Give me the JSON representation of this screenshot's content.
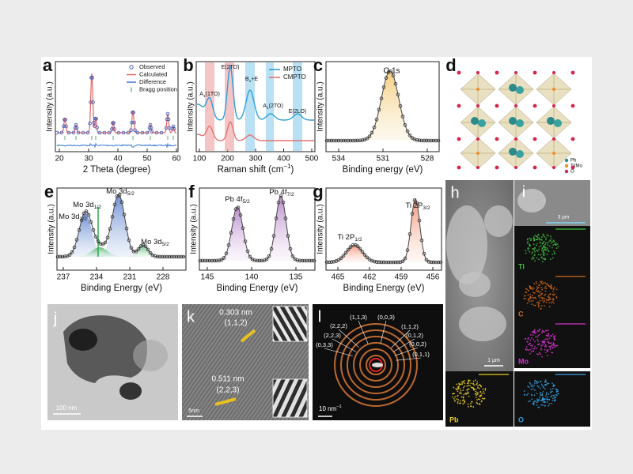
{
  "figure": {
    "a": {
      "label": "a",
      "y_label": "Intensity (a.u.)",
      "x_label": "2 Theta (degree)",
      "x_ticks": [
        "20",
        "30",
        "40",
        "50",
        "60"
      ],
      "legend": [
        "Observed",
        "Calculated",
        "Difference",
        "Bragg position"
      ]
    },
    "b": {
      "label": "b",
      "y_label": "Intensity (a.u.)",
      "x_label": {
        "text": "Raman shift (cm",
        "sup": "−1",
        "tail": ")"
      },
      "x_ticks": [
        "100",
        "200",
        "300",
        "400",
        "500"
      ],
      "legend": [
        "MPTO",
        "CMPTO"
      ],
      "peaks": [
        {
          "text": "A",
          "sub": "1",
          "tail": "(1TO)"
        },
        {
          "text": "E(2TO)"
        },
        {
          "text": "B",
          "sub": "1",
          "tail": "+E"
        },
        {
          "text": "A",
          "sub": "1",
          "tail": "(2TO)"
        },
        {
          "text": "E(2LO)"
        }
      ]
    },
    "c": {
      "label": "c",
      "y_label": "Intensity (a.u.)",
      "x_label": "Binding energy (eV)",
      "x_ticks": [
        "534",
        "531",
        "528"
      ],
      "peak": "O 1s"
    },
    "d": {
      "label": "d",
      "legend": [
        "Pb",
        "Ti/Mo",
        "O"
      ]
    },
    "e": {
      "label": "e",
      "y_label": "Intensity (a.u.)",
      "x_label": "Binding Energy (eV)",
      "x_ticks": [
        "237",
        "234",
        "231",
        "228"
      ],
      "peaks": [
        {
          "text": "Mo 3d",
          "sub": "3/2"
        },
        {
          "text": "Mo 3d",
          "sub": "1/2"
        },
        {
          "text": "Mo 3d",
          "sub": "5/2"
        },
        {
          "text": "Mo 3d",
          "sub": "5/2"
        }
      ]
    },
    "f": {
      "label": "f",
      "y_label": "Intensity (a.u.)",
      "x_label": "Binding Energy (eV)",
      "x_ticks": [
        "145",
        "140",
        "135"
      ],
      "peaks": [
        {
          "text": "Pb 4f",
          "sub": "5/2"
        },
        {
          "text": "Pb 4f",
          "sub": "7/2"
        }
      ]
    },
    "g": {
      "label": "g",
      "y_label": "Intensity (a.u.)",
      "x_label": "Binding Energy (eV)",
      "x_ticks": [
        "465",
        "462",
        "459",
        "456"
      ],
      "peaks": [
        {
          "text": "Ti 2P",
          "sub": "1/2"
        },
        {
          "text": "Ti 2P",
          "sub": "3/2"
        }
      ]
    },
    "h": {
      "label": "h",
      "scale": "1 μm"
    },
    "i": {
      "label": "i",
      "scale": "3 μm",
      "maps": [
        "Ti",
        "C",
        "Mo",
        "Pb",
        "O"
      ]
    },
    "j": {
      "label": "j",
      "scale": "100 nm"
    },
    "k": {
      "label": "k",
      "annotations": [
        "0.303 nm",
        "(1,1,2)",
        "0.511 nm",
        "(2,2,3)"
      ],
      "scale": "5nm"
    },
    "l": {
      "label": "l",
      "scale": {
        "text": "10 nm",
        "sup": "−1"
      },
      "planes": [
        "(1,1,3)",
        "(0,0,3)",
        "(2,2,2)",
        "(1,1,2)",
        "(2,2,3)",
        "(0,1,2)",
        "(0,0,2)",
        "(0,3,3)",
        "(0,1,1)"
      ]
    }
  }
}
